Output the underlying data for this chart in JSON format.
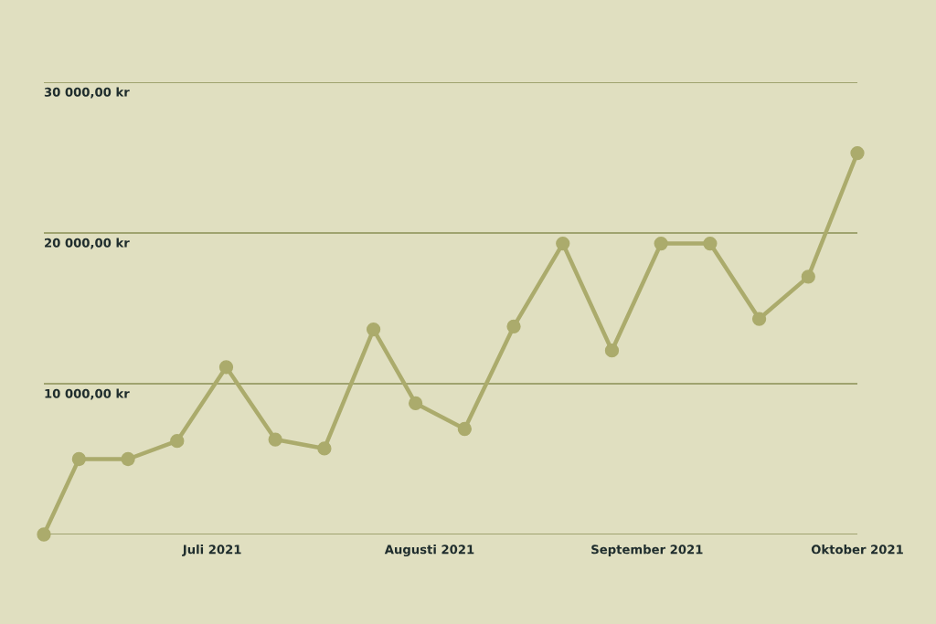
{
  "chart_data": {
    "type": "line",
    "x": [
      "2021-06-07",
      "2021-06-12",
      "2021-06-19",
      "2021-06-26",
      "2021-07-03",
      "2021-07-10",
      "2021-07-17",
      "2021-07-24",
      "2021-07-30",
      "2021-08-06",
      "2021-08-13",
      "2021-08-20",
      "2021-08-27",
      "2021-09-03",
      "2021-09-10",
      "2021-09-17",
      "2021-09-24",
      "2021-10-01"
    ],
    "series": [
      {
        "color": "#abab6c",
        "values": [
          0,
          5000,
          5000,
          6200,
          11100,
          6300,
          5700,
          13600,
          8700,
          7000,
          13800,
          19300,
          12200,
          19300,
          19300,
          14300,
          17100,
          25300
        ]
      }
    ],
    "xlim": [
      "2021-06-07",
      "2021-10-01"
    ],
    "xticks": [
      {
        "value": "2021-07-01",
        "label": "Juli 2021"
      },
      {
        "value": "2021-08-01",
        "label": "Augusti 2021"
      },
      {
        "value": "2021-09-01",
        "label": "September 2021"
      },
      {
        "value": "2021-10-01",
        "label": "Oktober 2021"
      }
    ],
    "ylim": [
      0,
      30000
    ],
    "yticks": [
      {
        "value": 0,
        "label": null
      },
      {
        "value": 10000,
        "label": "10 000,00 kr"
      },
      {
        "value": 20000,
        "label": "20 000,00 kr"
      },
      {
        "value": 30000,
        "label": "30 000,00 kr"
      }
    ],
    "grid": "y",
    "marker": "circle",
    "line_style": "solid",
    "legend": false
  }
}
